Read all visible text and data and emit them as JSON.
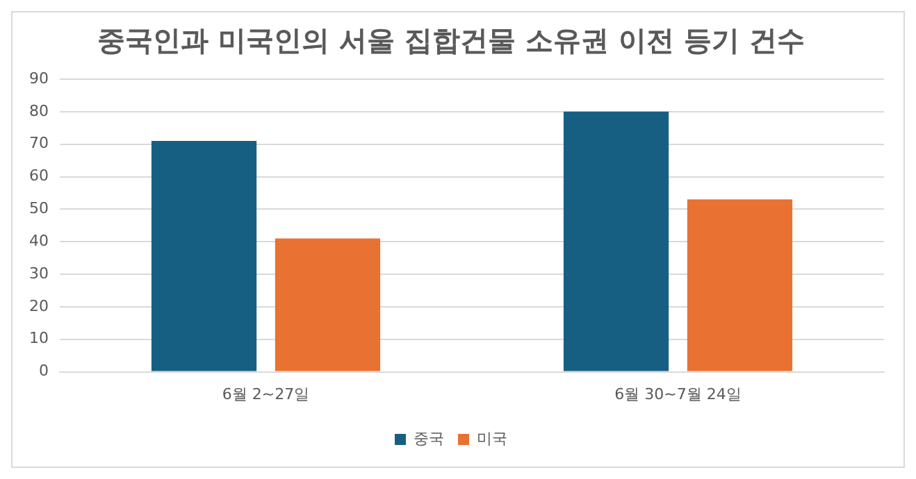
{
  "chart_data": {
    "type": "bar",
    "title": "중국인과 미국인의 서울 집합건물 소유권 이전 등기 건수",
    "categories": [
      "6월 2~27일",
      "6월 30~7월 24일"
    ],
    "series": [
      {
        "name": "중국",
        "color": "#175f82",
        "values": [
          71,
          80
        ]
      },
      {
        "name": "미국",
        "color": "#e97132",
        "values": [
          41,
          53
        ]
      }
    ],
    "ylim": [
      0,
      90
    ],
    "yticks": [
      0,
      10,
      20,
      30,
      40,
      50,
      60,
      70,
      80,
      90
    ],
    "grid": "y",
    "legend": "bottom"
  }
}
